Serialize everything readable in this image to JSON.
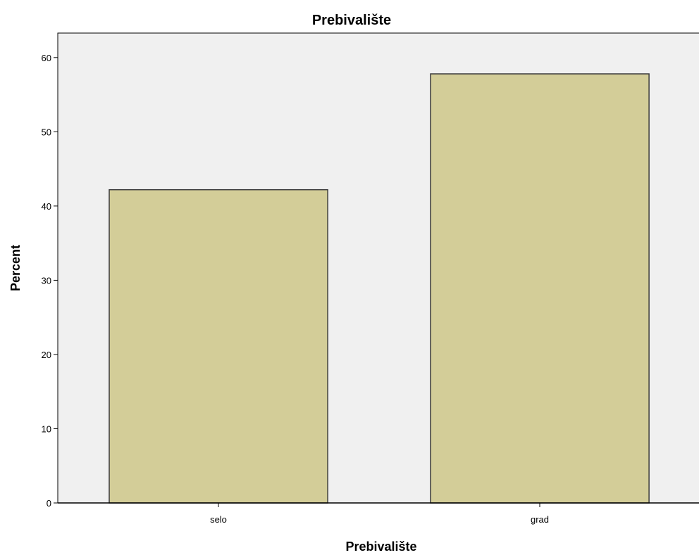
{
  "chart_data": {
    "type": "bar",
    "title": "Prebivalište",
    "xlabel": "Prebivalište",
    "ylabel": "Percent",
    "categories": [
      "selo",
      "grad"
    ],
    "values": [
      42.2,
      57.8
    ],
    "ylim": [
      0,
      63.3
    ],
    "yticks": [
      0,
      10,
      20,
      30,
      40,
      50,
      60
    ],
    "grid": false,
    "legend": "none",
    "colors": {
      "bar_fill": "#d3cd98",
      "bar_stroke": "#3a3a3a",
      "plot_background": "#f0f0f0",
      "axis": "#000000"
    }
  }
}
